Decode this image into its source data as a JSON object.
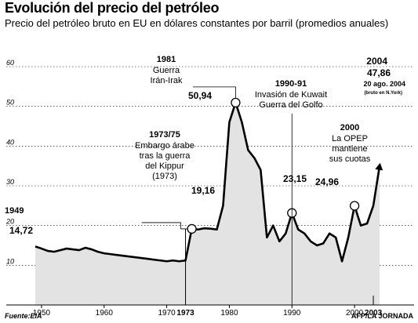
{
  "title": "Evolución del precio del petróleo",
  "subtitle": "Precio del petróleo bruto en EU en dólares constantes por barril (promedios anuales)",
  "source": "Fuente:EIA",
  "credit": "AFP/LA JORNADA",
  "colors": {
    "area": "#e3e3e3",
    "line": "#000000",
    "marker": "#ffffff"
  },
  "chart_data": {
    "type": "area",
    "ylim": [
      0,
      60
    ],
    "y_ticks": [
      "10",
      "20",
      "30",
      "40",
      "50",
      "60"
    ],
    "xlim": [
      1948,
      2005
    ],
    "x_ticks": [
      "1950",
      "1960",
      "1970",
      "1980",
      "1990",
      "2000"
    ],
    "x": [
      1949,
      1950,
      1951,
      1952,
      1953,
      1954,
      1955,
      1956,
      1957,
      1958,
      1959,
      1960,
      1961,
      1962,
      1963,
      1964,
      1965,
      1966,
      1967,
      1968,
      1969,
      1970,
      1971,
      1972,
      1973,
      1974,
      1975,
      1976,
      1977,
      1978,
      1979,
      1980,
      1981,
      1982,
      1983,
      1984,
      1985,
      1986,
      1987,
      1988,
      1989,
      1990,
      1991,
      1992,
      1993,
      1994,
      1995,
      1996,
      1997,
      1998,
      1999,
      2000,
      2001,
      2002,
      2003,
      2004
    ],
    "y": [
      14.72,
      14.2,
      13.6,
      13.4,
      13.8,
      14.2,
      14.0,
      13.8,
      14.4,
      14.0,
      13.4,
      13.0,
      12.8,
      12.6,
      12.4,
      12.2,
      12.0,
      11.8,
      11.6,
      11.4,
      11.2,
      11.0,
      11.2,
      11.0,
      11.2,
      19.16,
      19.0,
      19.3,
      19.2,
      19.0,
      25.0,
      46.0,
      50.94,
      46.0,
      39.0,
      37.0,
      34.0,
      17.0,
      20.0,
      16.0,
      18.0,
      23.15,
      19.0,
      18.0,
      16.0,
      15.0,
      15.5,
      18.0,
      17.0,
      11.0,
      17.0,
      24.96,
      20.0,
      20.5,
      25.0,
      35.0
    ],
    "annotations": [
      {
        "year": "1949",
        "value": "14,72"
      },
      {
        "year": "1973/75",
        "lines": [
          "Embargo árabe",
          "tras la guerra",
          "del Kippur",
          "(1973)"
        ],
        "value": "19,16",
        "axis_label": "1973"
      },
      {
        "year": "1981",
        "lines": [
          "Guerra",
          "Irán-Irak"
        ],
        "value": "50,94"
      },
      {
        "year": "1990-91",
        "lines": [
          "Invasión de Kuwait",
          "Guerra del Golfo"
        ],
        "value": "23,15"
      },
      {
        "year": "2000",
        "lines": [
          "La OPEP",
          "mantiene",
          "sus cuotas"
        ],
        "value": "24,96"
      },
      {
        "year": "2004",
        "value": "47,86",
        "lines": [
          "20 ago. 2004",
          "(bruto en N.York)"
        ],
        "axis_label": "2003"
      }
    ]
  }
}
